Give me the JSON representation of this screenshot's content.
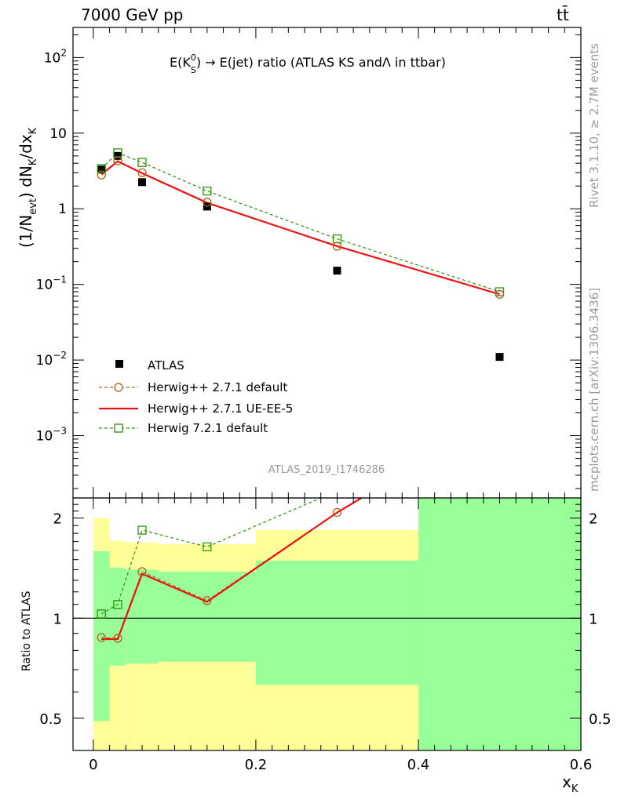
{
  "header": {
    "energy_label": "7000 GeV pp",
    "process_label": "tt̄"
  },
  "side_labels": {
    "rivet": "Rivet 3.1.10, ≥ 2.7M events",
    "mcplots": "mcplots.cern.ch [arXiv:1306.3436]"
  },
  "analysis_id": "ATLAS_2019_I1746286",
  "colors": {
    "data": "#000000",
    "herwigpp_default": "#b0611b",
    "herwigpp_ueee5": "#ee1111",
    "herwig72_default": "#2f8f12",
    "band_yellow": "#ffff99",
    "band_green": "#99ff99"
  },
  "chart_data": [
    {
      "type": "scatter",
      "title_parts": {
        "pre": "E(K",
        "sup": "0",
        "sub": "S",
        "post": ") → E(jet) ratio (ATLAS KS andΛ in ttbar)"
      },
      "ylabel_parts": {
        "a": "(1/N",
        "a_sub": "evt",
        "b": ") dN",
        "b_sub": "K",
        "c": "/dx",
        "c_sub": "K"
      },
      "yscale": "log",
      "ylim": [
        0.00015,
        250
      ],
      "y_ticks": [
        {
          "value": 0.001,
          "base": "10",
          "exp": "−3"
        },
        {
          "value": 0.01,
          "base": "10",
          "exp": "−2"
        },
        {
          "value": 0.1,
          "base": "10",
          "exp": "−1"
        },
        {
          "value": 1,
          "label": "1"
        },
        {
          "value": 10,
          "label": "10"
        },
        {
          "value": 100,
          "base": "10",
          "exp": "2"
        }
      ],
      "xlim": [
        -0.025,
        0.6
      ],
      "legend_position": "lower-left",
      "series": [
        {
          "name": "ATLAS",
          "marker": "filled-square",
          "x": [
            0.01,
            0.03,
            0.06,
            0.14,
            0.3,
            0.5
          ],
          "y": [
            3.3,
            5.0,
            2.25,
            1.07,
            0.152,
            0.011
          ]
        },
        {
          "name": "Herwig++ 2.7.1 default",
          "marker": "open-circle",
          "line": "dashed",
          "x": [
            0.01,
            0.03,
            0.06,
            0.14,
            0.3,
            0.5
          ],
          "y": [
            2.8,
            4.3,
            3.0,
            1.22,
            0.32,
            0.074
          ]
        },
        {
          "name": "Herwig++ 2.7.1 UE-EE-5",
          "marker": "none",
          "line": "solid",
          "x": [
            0.01,
            0.03,
            0.06,
            0.14,
            0.3,
            0.5
          ],
          "y": [
            2.85,
            4.25,
            2.95,
            1.2,
            0.32,
            0.074
          ]
        },
        {
          "name": "Herwig 7.2.1 default",
          "marker": "open-square",
          "line": "dashed",
          "x": [
            0.01,
            0.03,
            0.06,
            0.14,
            0.3,
            0.5
          ],
          "y": [
            3.4,
            5.5,
            4.1,
            1.72,
            0.4,
            0.08
          ]
        }
      ]
    },
    {
      "type": "line",
      "ylabel": "Ratio to ATLAS",
      "yscale": "log",
      "ylim": [
        0.4,
        2.3
      ],
      "y_ticks": [
        0.5,
        1,
        2
      ],
      "xlim": [
        -0.025,
        0.6
      ],
      "x_ticks": [
        0,
        0.2,
        0.4,
        0.6
      ],
      "xlabel_parts": {
        "main": "x",
        "sub": "K"
      },
      "reference_line": 1,
      "bands": {
        "bins": [
          [
            0,
            0.02
          ],
          [
            0.02,
            0.04
          ],
          [
            0.04,
            0.08
          ],
          [
            0.08,
            0.2
          ],
          [
            0.2,
            0.4
          ],
          [
            0.4,
            0.6
          ]
        ],
        "yellow": [
          [
            0.4,
            2.0
          ],
          [
            0.4,
            1.71
          ],
          [
            0.4,
            1.69
          ],
          [
            0.4,
            1.67
          ],
          [
            0.4,
            1.84
          ],
          [
            0.4,
            2.3
          ]
        ],
        "green": [
          [
            0.49,
            1.59
          ],
          [
            0.72,
            1.42
          ],
          [
            0.73,
            1.4
          ],
          [
            0.74,
            1.38
          ],
          [
            0.63,
            1.49
          ],
          [
            0.4,
            2.3
          ]
        ]
      },
      "series": [
        {
          "name": "Herwig++ 2.7.1 default",
          "marker": "open-circle",
          "line": "dashed",
          "x": [
            0.01,
            0.03,
            0.06,
            0.14,
            0.3
          ],
          "y": [
            0.875,
            0.87,
            1.38,
            1.13,
            2.08
          ]
        },
        {
          "name": "Herwig++ 2.7.1 UE-EE-5",
          "marker": "none",
          "line": "solid",
          "x": [
            0.01,
            0.03,
            0.06,
            0.14,
            0.3,
            0.33
          ],
          "y": [
            0.865,
            0.865,
            1.36,
            1.12,
            2.08,
            2.3
          ]
        },
        {
          "name": "Herwig 7.2.1 default",
          "marker": "open-square",
          "line": "dashed",
          "x": [
            0.01,
            0.03,
            0.06,
            0.14,
            0.28
          ],
          "y": [
            1.03,
            1.1,
            1.84,
            1.64,
            2.3
          ]
        }
      ]
    }
  ]
}
